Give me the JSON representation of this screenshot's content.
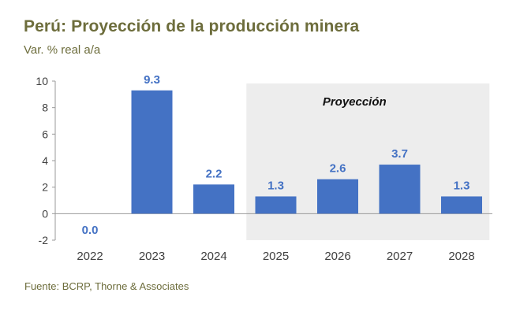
{
  "title": "Perú: Proyección de la producción minera",
  "subtitle": "Var. % real a/a",
  "source": "Fuente: BCRP, Thorne & Associates",
  "colors": {
    "bar": "#4472c4",
    "label": "#4472c4",
    "shade": "#ededed",
    "axis_text": "#404040",
    "title": "#6d6d3c"
  },
  "chart_data": {
    "type": "bar",
    "categories": [
      "2022",
      "2023",
      "2024",
      "2025",
      "2026",
      "2027",
      "2028"
    ],
    "values": [
      0.0,
      9.3,
      2.2,
      1.3,
      2.6,
      3.7,
      1.3
    ],
    "data_labels": [
      "0.0",
      "9.3",
      "2.2",
      "1.3",
      "2.6",
      "3.7",
      "1.3"
    ],
    "title": "Perú: Proyección de la producción minera",
    "ylabel": "Var. % real a/a",
    "xlabel": "",
    "ylim": [
      -2,
      10
    ],
    "yticks": [
      -2,
      0,
      2,
      4,
      6,
      8,
      10
    ],
    "ytick_labels": [
      "-2",
      "0",
      "2",
      "4",
      "6",
      "8",
      "10"
    ],
    "grid": false,
    "annotation": {
      "text": "Proyección",
      "start_category": "2025",
      "end_category": "2028"
    }
  }
}
